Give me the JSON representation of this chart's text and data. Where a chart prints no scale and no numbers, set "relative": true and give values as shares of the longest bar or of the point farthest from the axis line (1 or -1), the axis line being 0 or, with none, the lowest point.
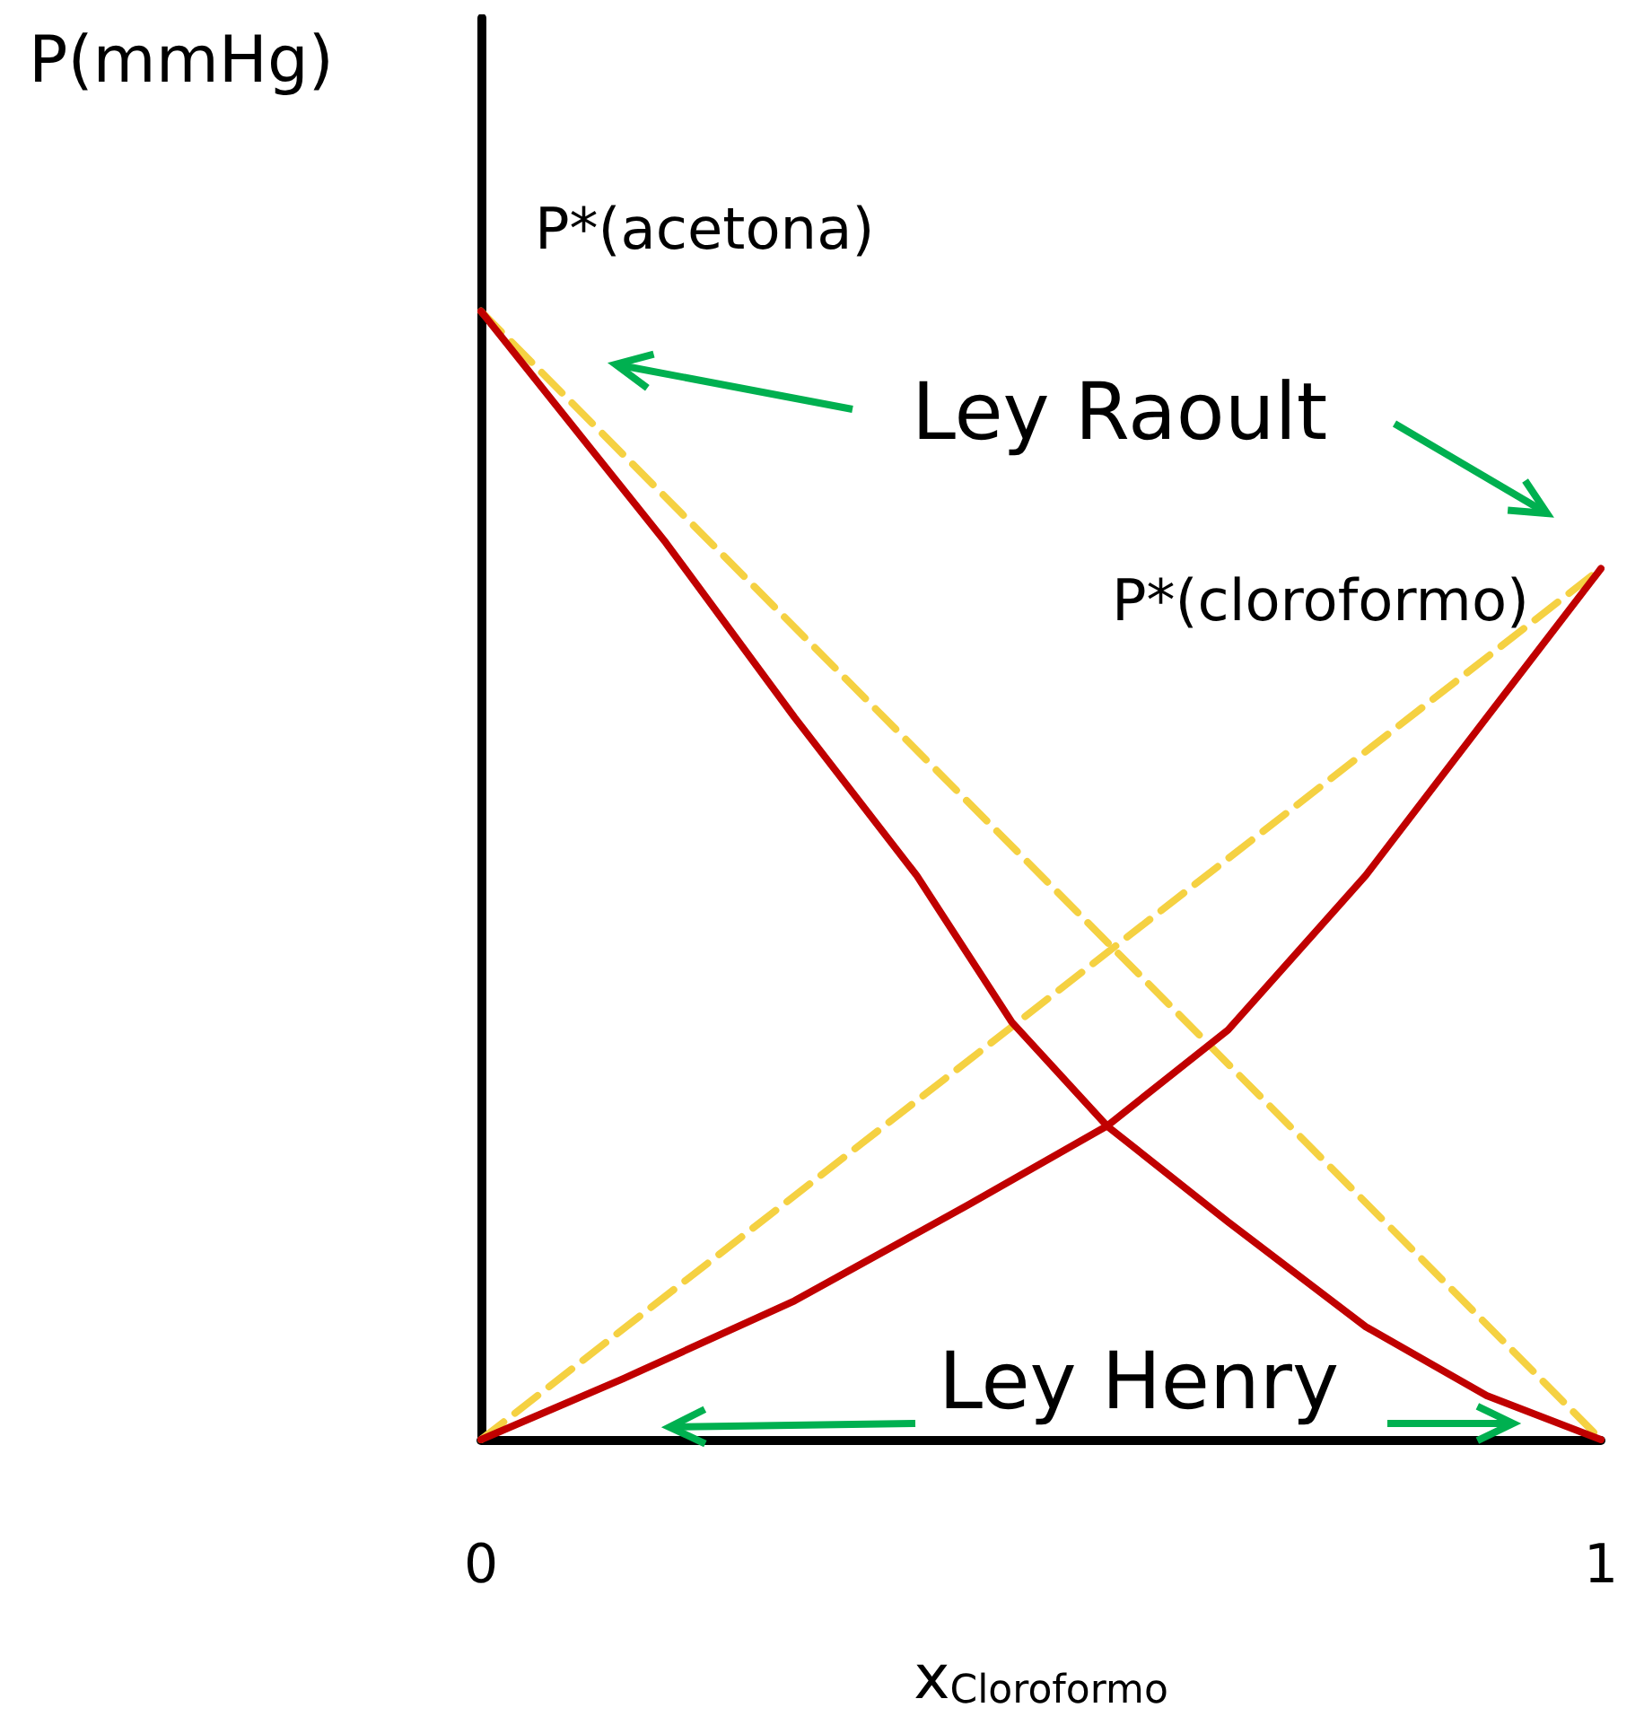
{
  "chart_data": {
    "type": "line",
    "relative": true,
    "xlabel": "x$_{Cloroformo}$",
    "ylabel": "P(mmHg)",
    "xlim": [
      0,
      1
    ],
    "xticks": [
      0,
      1
    ],
    "grid": false,
    "marker": "none",
    "series": [
      {
        "color": "#c00000",
        "x": [
          0,
          0.165,
          0.28,
          0.389,
          0.474,
          0.559,
          0.667,
          0.79,
          0.898,
          1
        ],
        "values": [
          1,
          0.795,
          0.64,
          0.5,
          0.37,
          0.278,
          0.193,
          0.1,
          0.039,
          0
        ]
      },
      {
        "color": "#c00000",
        "x": [
          0,
          0.127,
          0.28,
          0.435,
          0.559,
          0.667,
          0.79,
          0.898,
          1
        ],
        "values": [
          0,
          0.054,
          0.123,
          0.208,
          0.278,
          0.363,
          0.5,
          0.64,
          0.772
        ]
      },
      {
        "color": "#f5d142",
        "line_style": "dashed",
        "x": [
          0,
          1
        ],
        "values": [
          1,
          0
        ]
      },
      {
        "color": "#f5d142",
        "line_style": "dashed",
        "x": [
          0,
          1
        ],
        "values": [
          0,
          0.772
        ]
      }
    ],
    "annotations": [
      {
        "text": "P*(acetona)",
        "x": 0,
        "y": 1
      },
      "Ley Raoult",
      {
        "text": "P*(cloroformo)",
        "x": 1,
        "y": 0.772
      },
      "Ley Henry"
    ]
  }
}
